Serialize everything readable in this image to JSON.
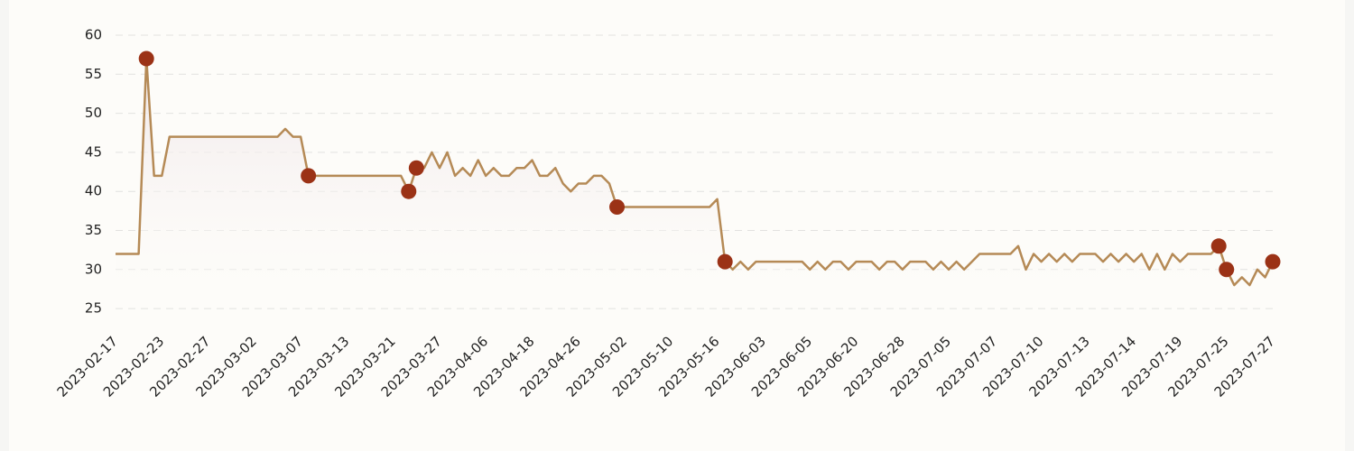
{
  "chart_data": {
    "type": "line",
    "categories": [
      "2023-02-17",
      null,
      null,
      null,
      null,
      null,
      "2023-02-23",
      null,
      null,
      null,
      null,
      null,
      "2023-02-27",
      null,
      null,
      null,
      null,
      null,
      "2023-03-02",
      null,
      null,
      null,
      null,
      null,
      "2023-03-07",
      null,
      null,
      null,
      null,
      null,
      "2023-03-13",
      null,
      null,
      null,
      null,
      null,
      "2023-03-21",
      null,
      null,
      null,
      null,
      null,
      "2023-03-27",
      null,
      null,
      null,
      null,
      null,
      "2023-04-06",
      null,
      null,
      null,
      null,
      null,
      "2023-04-18",
      null,
      null,
      null,
      null,
      null,
      "2023-04-26",
      null,
      null,
      null,
      null,
      null,
      "2023-05-02",
      null,
      null,
      null,
      null,
      null,
      "2023-05-10",
      null,
      null,
      null,
      null,
      null,
      "2023-05-16",
      null,
      null,
      null,
      null,
      null,
      "2023-06-03",
      null,
      null,
      null,
      null,
      null,
      "2023-06-05",
      null,
      null,
      null,
      null,
      null,
      "2023-06-20",
      null,
      null,
      null,
      null,
      null,
      "2023-06-28",
      null,
      null,
      null,
      null,
      null,
      "2023-07-05",
      null,
      null,
      null,
      null,
      null,
      "2023-07-07",
      null,
      null,
      null,
      null,
      null,
      "2023-07-10",
      null,
      null,
      null,
      null,
      null,
      "2023-07-13",
      null,
      null,
      null,
      null,
      null,
      "2023-07-14",
      null,
      null,
      null,
      null,
      null,
      "2023-07-19",
      null,
      null,
      null,
      null,
      null,
      "2023-07-25",
      null,
      null,
      null,
      null,
      null,
      "2023-07-27"
    ],
    "series": [
      {
        "color": "#b58a56",
        "values": [
          32,
          32,
          32,
          32,
          57,
          42,
          42,
          47,
          47,
          47,
          47,
          47,
          47,
          47,
          47,
          47,
          47,
          47,
          47,
          47,
          47,
          47,
          48,
          47,
          47,
          42,
          42,
          42,
          42,
          42,
          42,
          42,
          42,
          42,
          42,
          42,
          42,
          42,
          40,
          43,
          43,
          45,
          43,
          45,
          42,
          43,
          42,
          44,
          42,
          43,
          42,
          42,
          43,
          43,
          44,
          42,
          42,
          43,
          41,
          40,
          41,
          41,
          42,
          42,
          41,
          38,
          38,
          38,
          38,
          38,
          38,
          38,
          38,
          38,
          38,
          38,
          38,
          38,
          39,
          31,
          30,
          31,
          30,
          31,
          31,
          31,
          31,
          31,
          31,
          31,
          30,
          31,
          30,
          31,
          31,
          30,
          31,
          31,
          31,
          30,
          31,
          31,
          30,
          31,
          31,
          31,
          30,
          31,
          30,
          31,
          30,
          31,
          32,
          32,
          32,
          32,
          32,
          33,
          30,
          32,
          31,
          32,
          31,
          32,
          31,
          32,
          32,
          32,
          31,
          32,
          31,
          32,
          31,
          32,
          30,
          32,
          30,
          32,
          31,
          32,
          32,
          32,
          32,
          33,
          30,
          28,
          29,
          28,
          30,
          29,
          31
        ]
      }
    ],
    "highlight_indices": [
      4,
      25,
      38,
      39,
      65,
      79,
      143,
      144,
      150
    ],
    "highlight_color": "#9b3216",
    "ylim": [
      23,
      60
    ],
    "yticks": [
      25,
      30,
      35,
      40,
      45,
      50,
      55,
      60
    ],
    "grid": true
  }
}
